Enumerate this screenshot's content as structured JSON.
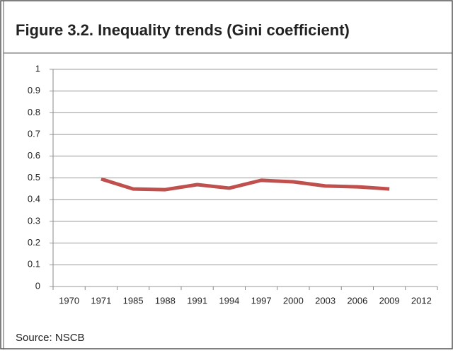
{
  "chart_data": {
    "type": "line",
    "title": "Figure 3.2.  Inequality trends (Gini coefficient)",
    "categories": [
      "1970",
      "1971",
      "1985",
      "1988",
      "1991",
      "1994",
      "1997",
      "2000",
      "2003",
      "2006",
      "2009",
      "2012"
    ],
    "series": [
      {
        "name": "Gini coefficient",
        "color": "#c0504d",
        "values": [
          null,
          0.495,
          0.449,
          0.446,
          0.469,
          0.453,
          0.489,
          0.482,
          0.463,
          0.459,
          0.449,
          null
        ]
      }
    ],
    "ylim": [
      0,
      1
    ],
    "yticks": [
      0,
      0.1,
      0.2,
      0.3,
      0.4,
      0.5,
      0.6,
      0.7,
      0.8,
      0.9,
      1
    ],
    "grid": true,
    "source": "Source:  NSCB"
  }
}
